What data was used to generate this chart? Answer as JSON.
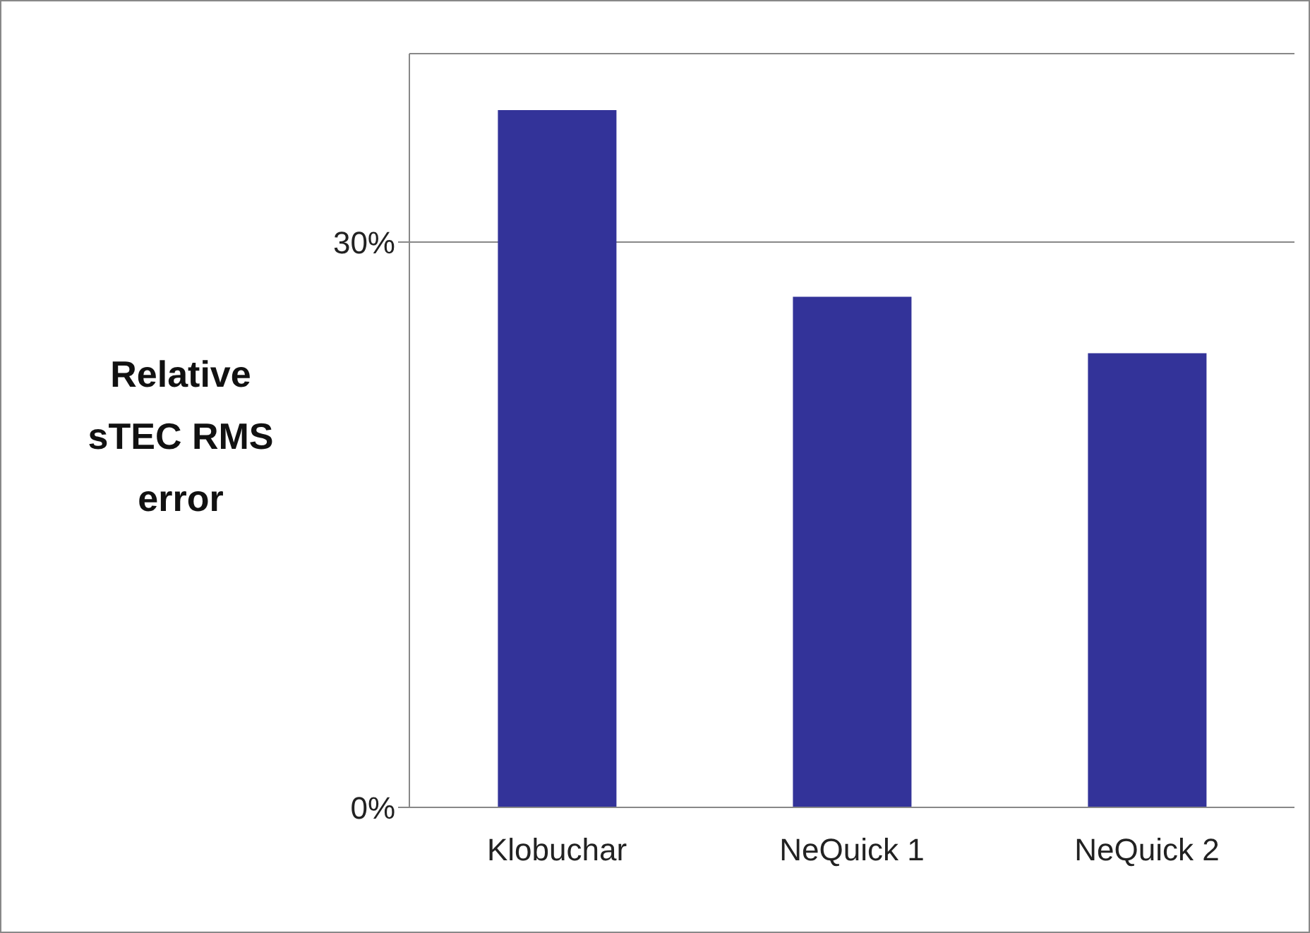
{
  "chart_data": {
    "type": "bar",
    "ylabel": "Relative sTEC RMS error",
    "categories": [
      "Klobuchar",
      "NeQuick 1",
      "NeQuick 2"
    ],
    "values": [
      37,
      27.1,
      24.1
    ],
    "color": "#333399",
    "ylim": [
      0,
      40
    ],
    "yticks": [
      {
        "value": 0,
        "label": "0%"
      },
      {
        "value": 30,
        "label": "30%"
      }
    ],
    "grid": "y"
  }
}
